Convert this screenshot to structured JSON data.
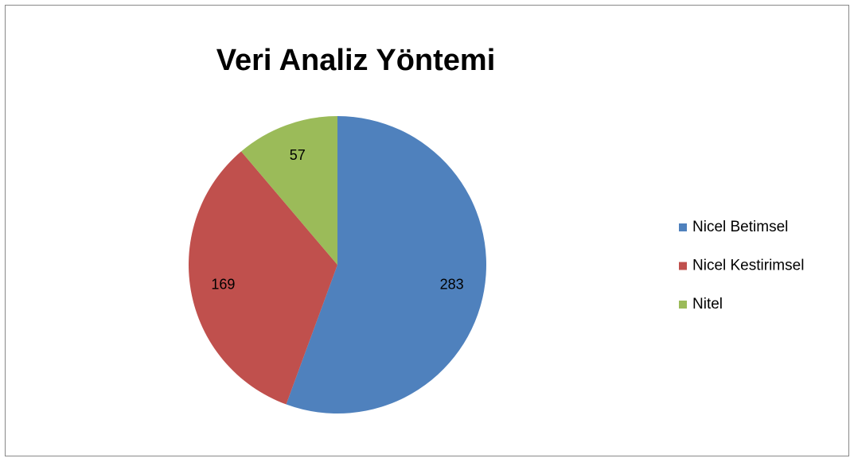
{
  "chart_data": {
    "type": "pie",
    "title": "Veri Analiz Yöntemi",
    "categories": [
      "Nicel Betimsel",
      "Nicel Kestirimsel",
      "Nitel"
    ],
    "values": [
      283,
      169,
      57
    ],
    "colors": [
      "#4f81bd",
      "#c0504d",
      "#9bbb59"
    ],
    "legend": "right"
  }
}
